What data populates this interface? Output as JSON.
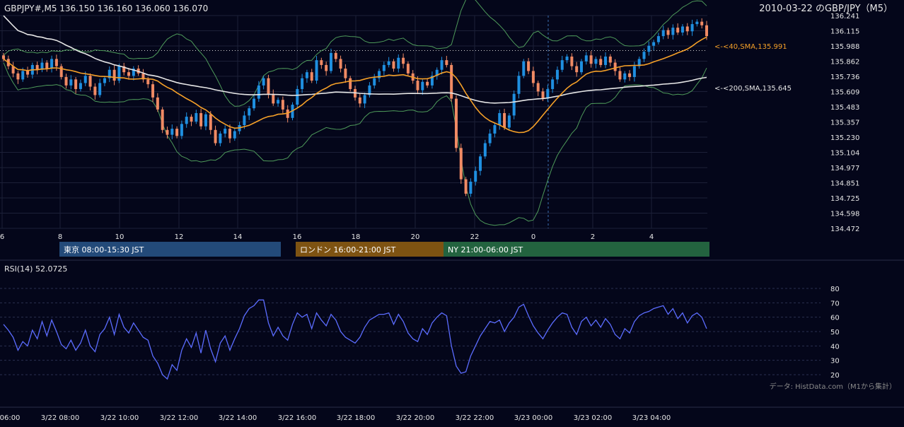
{
  "header": {
    "symbol_line": "GBPJPY#,M5 136.150 136.160 136.060 136.070",
    "title_right": "2010-03-22 のGBP/JPY（M5）"
  },
  "sessions": [
    {
      "label": "東京 08:00-15:30 JST",
      "color": "#234a79"
    },
    {
      "label": "ロンドン 16:00-21:00 JST",
      "color": "#7e5312"
    },
    {
      "label": "NY 21:00-06:00 JST",
      "color": "#23633f"
    }
  ],
  "ma_labels": {
    "sma40": "<-<40,SMA,135.991",
    "sma200": "<-<200,SMA,135.645"
  },
  "rsi": {
    "title": "RSI(14) 52.0725",
    "ticks": [
      "80",
      "70",
      "60",
      "50",
      "40",
      "30",
      "20"
    ],
    "credit": "データ: HistData.com（M1から集計）"
  },
  "colors": {
    "background": "#04061a",
    "bull_candle": "#1f8fe0",
    "bear_candle": "#f08a64",
    "sma40": "#f5a028",
    "sma200": "#e6e6e6",
    "bollinger": "#4e9a5a",
    "rsi_line": "#5b6cff",
    "grid": "#1c2038"
  },
  "chart_data": {
    "type": "candlestick",
    "instrument": "GBPJPY#",
    "timeframe": "M5",
    "ohlc_last": {
      "open": 136.15,
      "high": 136.16,
      "low": 136.06,
      "close": 136.07
    },
    "y_ticks": [
      "136.241",
      "136.115",
      "135.988",
      "135.862",
      "135.736",
      "135.609",
      "135.483",
      "135.357",
      "135.230",
      "135.104",
      "134.977",
      "134.851",
      "134.725",
      "134.598",
      "134.472"
    ],
    "ylim": [
      134.472,
      136.241
    ],
    "x_ticks_top": [
      "6",
      "8",
      "10",
      "12",
      "14",
      "16",
      "18",
      "20",
      "22",
      "0",
      "2",
      "4"
    ],
    "x_ticks_bottom": [
      "06:00",
      "3/22 08:00",
      "3/22 10:00",
      "3/22 12:00",
      "3/22 14:00",
      "3/22 16:00",
      "3/22 18:00",
      "3/22 20:00",
      "3/22 22:00",
      "3/23 00:00",
      "3/23 02:00",
      "3/23 04:00"
    ],
    "current_price_line": 135.95,
    "sma40_last": 135.991,
    "sma200_last": 135.645,
    "rsi_period": 14,
    "rsi_last": 52.0725,
    "rsi_ylim": [
      20,
      80
    ],
    "closes": [
      135.88,
      135.82,
      135.76,
      135.71,
      135.78,
      135.75,
      135.83,
      135.79,
      135.85,
      135.8,
      135.88,
      135.82,
      135.73,
      135.66,
      135.71,
      135.63,
      135.68,
      135.74,
      135.65,
      135.58,
      135.68,
      135.72,
      135.79,
      135.7,
      135.82,
      135.77,
      135.74,
      135.8,
      135.76,
      135.71,
      135.67,
      135.56,
      135.46,
      135.29,
      135.25,
      135.3,
      135.24,
      135.34,
      135.4,
      135.36,
      135.43,
      135.32,
      135.42,
      135.29,
      135.18,
      135.26,
      135.3,
      135.22,
      135.28,
      135.33,
      135.41,
      135.47,
      135.55,
      135.66,
      135.72,
      135.59,
      135.51,
      135.54,
      135.46,
      135.39,
      135.5,
      135.63,
      135.72,
      135.77,
      135.7,
      135.87,
      135.83,
      135.78,
      135.93,
      135.88,
      135.8,
      135.72,
      135.63,
      135.56,
      135.51,
      135.58,
      135.66,
      135.72,
      135.78,
      135.83,
      135.86,
      135.8,
      135.89,
      135.84,
      135.76,
      135.7,
      135.62,
      135.69,
      135.66,
      135.74,
      135.79,
      135.87,
      135.83,
      135.55,
      135.14,
      134.88,
      134.76,
      134.86,
      134.95,
      135.07,
      135.18,
      135.26,
      135.33,
      135.43,
      135.31,
      135.41,
      135.59,
      135.74,
      135.86,
      135.78,
      135.68,
      135.61,
      135.55,
      135.63,
      135.71,
      135.79,
      135.87,
      135.9,
      135.82,
      135.77,
      135.86,
      135.91,
      135.84,
      135.88,
      135.83,
      135.9,
      135.85,
      135.78,
      135.71,
      135.76,
      135.73,
      135.82,
      135.88,
      135.94,
      135.99,
      136.02,
      136.07,
      136.12,
      136.08,
      136.14,
      136.1,
      136.15,
      136.11,
      136.17,
      136.19,
      136.16,
      136.07
    ],
    "rsi_values": [
      55,
      51,
      46,
      37,
      43,
      40,
      51,
      45,
      57,
      47,
      58,
      50,
      41,
      38,
      44,
      37,
      42,
      51,
      40,
      36,
      48,
      52,
      60,
      48,
      62,
      53,
      49,
      56,
      51,
      46,
      44,
      33,
      28,
      20,
      17,
      27,
      23,
      37,
      45,
      39,
      49,
      35,
      51,
      38,
      29,
      42,
      47,
      37,
      45,
      52,
      61,
      66,
      68,
      72,
      72,
      56,
      47,
      53,
      47,
      44,
      55,
      63,
      60,
      62,
      52,
      63,
      58,
      54,
      62,
      58,
      50,
      46,
      44,
      42,
      46,
      53,
      58,
      60,
      62,
      62,
      63,
      55,
      62,
      57,
      49,
      45,
      43,
      52,
      48,
      56,
      60,
      63,
      61,
      40,
      26,
      21,
      22,
      33,
      40,
      47,
      52,
      57,
      56,
      58,
      50,
      56,
      60,
      67,
      69,
      61,
      54,
      49,
      45,
      51,
      56,
      60,
      63,
      62,
      53,
      48,
      57,
      60,
      54,
      58,
      53,
      59,
      55,
      48,
      45,
      52,
      49,
      57,
      61,
      63,
      64,
      66,
      67,
      68,
      62,
      66,
      59,
      63,
      56,
      61,
      63,
      60,
      52
    ]
  }
}
